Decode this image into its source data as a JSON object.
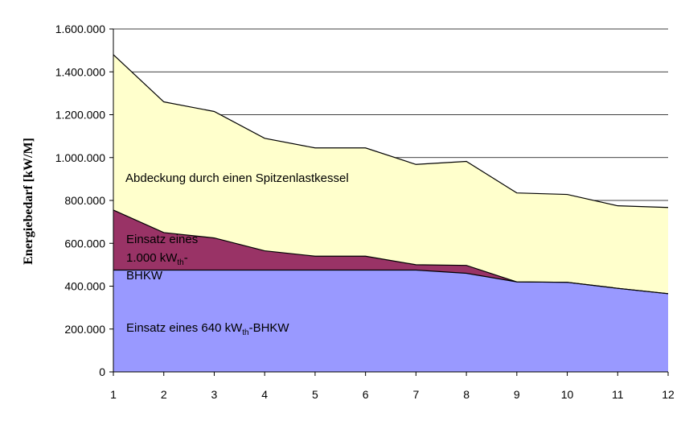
{
  "chart_data": {
    "type": "area",
    "title": "",
    "xlabel": "",
    "ylabel": "Energiebedarf [kW/M]",
    "x": [
      1,
      2,
      3,
      4,
      5,
      6,
      7,
      8,
      9,
      10,
      11,
      12
    ],
    "ylim": [
      0,
      1600000
    ],
    "yticks": [
      0,
      200000,
      400000,
      600000,
      800000,
      1000000,
      1200000,
      1400000,
      1600000
    ],
    "ytick_labels": [
      "0",
      "200.000",
      "400.000",
      "600.000",
      "800.000",
      "1.000.000",
      "1.200.000",
      "1.400.000",
      "1.600.000"
    ],
    "grid": true,
    "colors": {
      "bhkw640": "#9999ff",
      "bhkw1000": "#993366",
      "spitzenlast": "#ffffcc",
      "grid": "#000000",
      "plot_bg": "#ffffff"
    },
    "series": [
      {
        "name": "Einsatz eines 640 kWth-BHKW",
        "values": [
          475000,
          475000,
          475000,
          475000,
          475000,
          475000,
          475000,
          460000,
          420000,
          418000,
          390000,
          365000
        ]
      },
      {
        "name": "Einsatz eines 1.000 kWth-BHKW",
        "values": [
          755000,
          650000,
          625000,
          565000,
          540000,
          540000,
          500000,
          497000,
          420000,
          418000,
          390000,
          365000
        ]
      },
      {
        "name": "Abdeckung durch einen Spitzenlastkessel",
        "values": [
          1480000,
          1260000,
          1215000,
          1090000,
          1045000,
          1045000,
          968000,
          982000,
          835000,
          828000,
          775000,
          767000
        ]
      }
    ]
  },
  "labels": {
    "spitzenlast": "Abdeckung durch einen Spitzenlastkessel",
    "bhkw1000_line1": "Einsatz eines",
    "bhkw1000_line2_a": "1.000 kW",
    "bhkw1000_line2_sub": "th",
    "bhkw1000_line2_b": "-",
    "bhkw1000_line3": "BHKW",
    "bhkw640_a": "Einsatz eines 640 kW",
    "bhkw640_sub": "th",
    "bhkw640_b": "-BHKW"
  }
}
